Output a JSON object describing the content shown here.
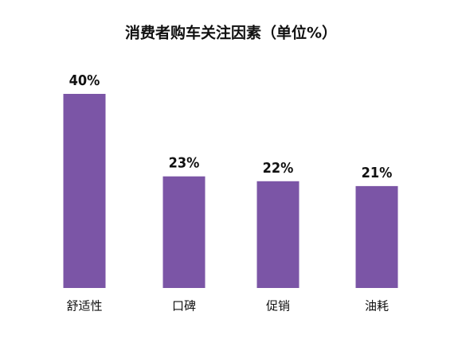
{
  "chart_data": {
    "type": "bar",
    "title": "消费者购车关注因素（单位%）",
    "categories": [
      "舒适性",
      "口碑",
      "促销",
      "油耗"
    ],
    "values": [
      40,
      23,
      22,
      21
    ],
    "value_labels": [
      "40%",
      "23%",
      "22%",
      "21%"
    ],
    "color": "#7b55a6"
  }
}
